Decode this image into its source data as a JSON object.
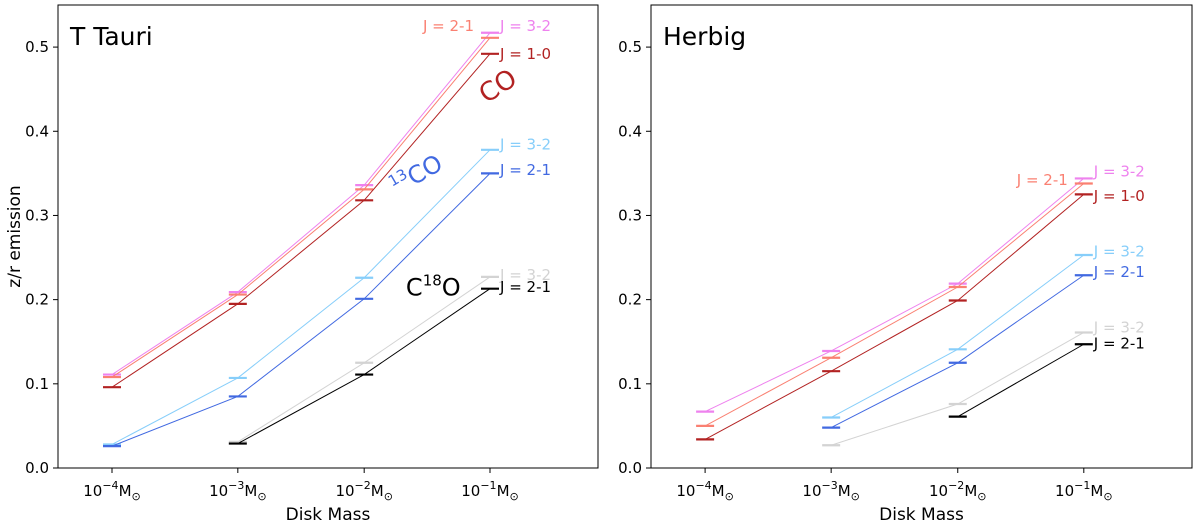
{
  "chart_data": [
    {
      "type": "line",
      "panel_title": "T Tauri",
      "xlabel": "Disk Mass",
      "ylabel": "z/r emission",
      "ylim": [
        0.0,
        0.55
      ],
      "yticks": [
        "0.0",
        "0.1",
        "0.2",
        "0.3",
        "0.4",
        "0.5"
      ],
      "ytick_values": [
        0.0,
        0.1,
        0.2,
        0.3,
        0.4,
        0.5
      ],
      "categories": [
        {
          "base": "10",
          "exp": "−4",
          "unit": "M",
          "sub": "⊙"
        },
        {
          "base": "10",
          "exp": "−3",
          "unit": "M",
          "sub": "⊙"
        },
        {
          "base": "10",
          "exp": "−2",
          "unit": "M",
          "sub": "⊙"
        },
        {
          "base": "10",
          "exp": "−1",
          "unit": "M",
          "sub": "⊙"
        }
      ],
      "species_labels": [
        {
          "pre": "",
          "sup": "",
          "post": "CO",
          "color": "#b22222",
          "x": 3.1,
          "y": 0.445,
          "size": 26,
          "rotate": -33
        },
        {
          "pre": "",
          "sup": "13",
          "post": "CO",
          "color": "#4169e1",
          "x": 2.45,
          "y": 0.34,
          "size": 24,
          "rotate": -30
        },
        {
          "pre": "C",
          "sup": "18",
          "post": "O",
          "color": "#000000",
          "x": 2.55,
          "y": 0.205,
          "size": 24,
          "rotate": 0
        }
      ],
      "series": [
        {
          "name": "CO J=3-2",
          "color": "#ee82ee",
          "values": [
            0.111,
            0.209,
            0.336,
            0.517
          ],
          "label": "J = 3-2",
          "label_side": "right",
          "label_dy": 0.008
        },
        {
          "name": "CO J=2-1",
          "color": "#fa8072",
          "values": [
            0.108,
            0.206,
            0.331,
            0.511
          ],
          "label": "J = 2-1",
          "label_side": "left",
          "label_dy": 0.014
        },
        {
          "name": "CO J=1-0",
          "color": "#b22222",
          "values": [
            0.096,
            0.195,
            0.318,
            0.492
          ],
          "label": "J = 1-0",
          "label_side": "right",
          "label_dy": 0.0
        },
        {
          "name": "13CO J=3-2",
          "color": "#87cefa",
          "values": [
            0.028,
            0.107,
            0.226,
            0.378
          ],
          "label": "J = 3-2",
          "label_side": "right",
          "label_dy": 0.006
        },
        {
          "name": "13CO J=2-1",
          "color": "#4169e1",
          "values": [
            0.026,
            0.085,
            0.201,
            0.35
          ],
          "label": "J = 2-1",
          "label_side": "right",
          "label_dy": 0.004
        },
        {
          "name": "C18O J=3-2",
          "color": "#d3d3d3",
          "values": [
            null,
            0.031,
            0.125,
            0.227
          ],
          "label": "J = 3-2",
          "label_side": "right",
          "label_dy": 0.002
        },
        {
          "name": "C18O J=2-1",
          "color": "#000000",
          "values": [
            null,
            0.029,
            0.111,
            0.213
          ],
          "label": "J = 2-1",
          "label_side": "right",
          "label_dy": 0.002
        }
      ]
    },
    {
      "type": "line",
      "panel_title": "Herbig",
      "xlabel": "Disk Mass",
      "ylabel": "",
      "ylim": [
        0.0,
        0.55
      ],
      "yticks": [
        "0.0",
        "0.1",
        "0.2",
        "0.3",
        "0.4",
        "0.5"
      ],
      "ytick_values": [
        0.0,
        0.1,
        0.2,
        0.3,
        0.4,
        0.5
      ],
      "categories": [
        {
          "base": "10",
          "exp": "−4",
          "unit": "M",
          "sub": "⊙"
        },
        {
          "base": "10",
          "exp": "−3",
          "unit": "M",
          "sub": "⊙"
        },
        {
          "base": "10",
          "exp": "−2",
          "unit": "M",
          "sub": "⊙"
        },
        {
          "base": "10",
          "exp": "−1",
          "unit": "M",
          "sub": "⊙"
        }
      ],
      "species_labels": [],
      "series": [
        {
          "name": "CO J=3-2",
          "color": "#ee82ee",
          "values": [
            0.067,
            0.139,
            0.219,
            0.344
          ],
          "label": "J = 3-2",
          "label_side": "right",
          "label_dy": 0.008
        },
        {
          "name": "CO J=2-1",
          "color": "#fa8072",
          "values": [
            0.05,
            0.131,
            0.215,
            0.338
          ],
          "label": "J = 2-1",
          "label_side": "left",
          "label_dy": 0.004
        },
        {
          "name": "CO J=1-0",
          "color": "#b22222",
          "values": [
            0.034,
            0.115,
            0.199,
            0.325
          ],
          "label": "J = 1-0",
          "label_side": "right",
          "label_dy": -0.002
        },
        {
          "name": "13CO J=3-2",
          "color": "#87cefa",
          "values": [
            null,
            0.06,
            0.141,
            0.253
          ],
          "label": "J = 3-2",
          "label_side": "right",
          "label_dy": 0.004
        },
        {
          "name": "13CO J=2-1",
          "color": "#4169e1",
          "values": [
            null,
            0.048,
            0.125,
            0.229
          ],
          "label": "J = 2-1",
          "label_side": "right",
          "label_dy": 0.004
        },
        {
          "name": "C18O J=3-2",
          "color": "#d3d3d3",
          "values": [
            null,
            0.027,
            0.076,
            0.161
          ],
          "label": "J = 3-2",
          "label_side": "right",
          "label_dy": 0.006
        },
        {
          "name": "C18O J=2-1",
          "color": "#000000",
          "values": [
            null,
            null,
            0.061,
            0.147
          ],
          "label": "J = 2-1",
          "label_side": "right",
          "label_dy": 0.001
        }
      ]
    }
  ]
}
